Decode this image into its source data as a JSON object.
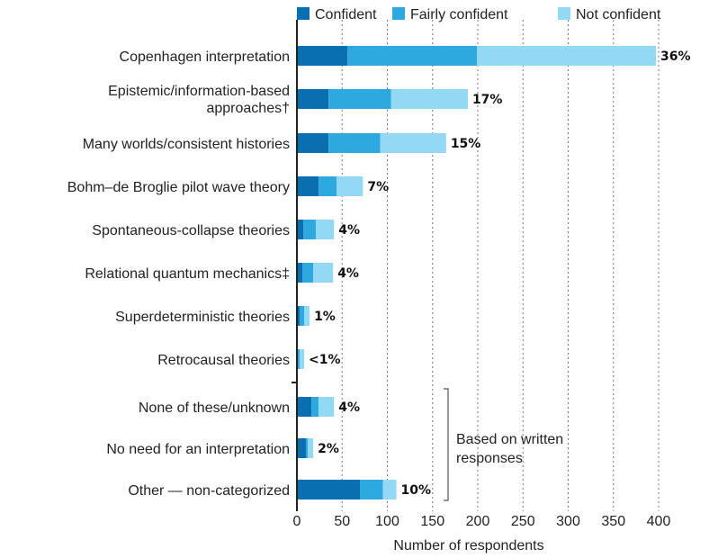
{
  "chart_data": {
    "type": "bar",
    "orientation": "horizontal",
    "stacked": true,
    "xlabel": "Number of respondents",
    "xlim": [
      0,
      400
    ],
    "xticks": [
      0,
      50,
      100,
      150,
      200,
      250,
      300,
      350,
      400
    ],
    "grid": "vertical dotted",
    "legend_position": "top",
    "colors": {
      "Confident": "#0a6fb0",
      "Fairly confident": "#2ea9df",
      "Not confident": "#93d8f5"
    },
    "categories": [
      "Copenhagen interpretation",
      "Epistemic/information-based approaches†",
      "Many worlds/consistent histories",
      "Bohm–de Broglie pilot wave theory",
      "Spontaneous-collapse theories",
      "Relational quantum mechanics‡",
      "Superdeterministic theories",
      "Retrocausal theories",
      "None of these/unknown",
      "No need for an interpretation",
      "Other — non-categorized"
    ],
    "series": [
      {
        "name": "Confident",
        "values": [
          56,
          35,
          35,
          24,
          7,
          6,
          3,
          1,
          16,
          10,
          70
        ]
      },
      {
        "name": "Fairly confident",
        "values": [
          143,
          69,
          57,
          20,
          14,
          12,
          5,
          2,
          8,
          2,
          25
        ]
      },
      {
        "name": "Not confident",
        "values": [
          198,
          85,
          73,
          29,
          20,
          22,
          6,
          5,
          17,
          6,
          15
        ]
      }
    ],
    "percent_labels": [
      "36%",
      "17%",
      "15%",
      "7%",
      "4%",
      "4%",
      "1%",
      "<1%",
      "4%",
      "2%",
      "10%"
    ],
    "annotation": "Based on written responses"
  }
}
